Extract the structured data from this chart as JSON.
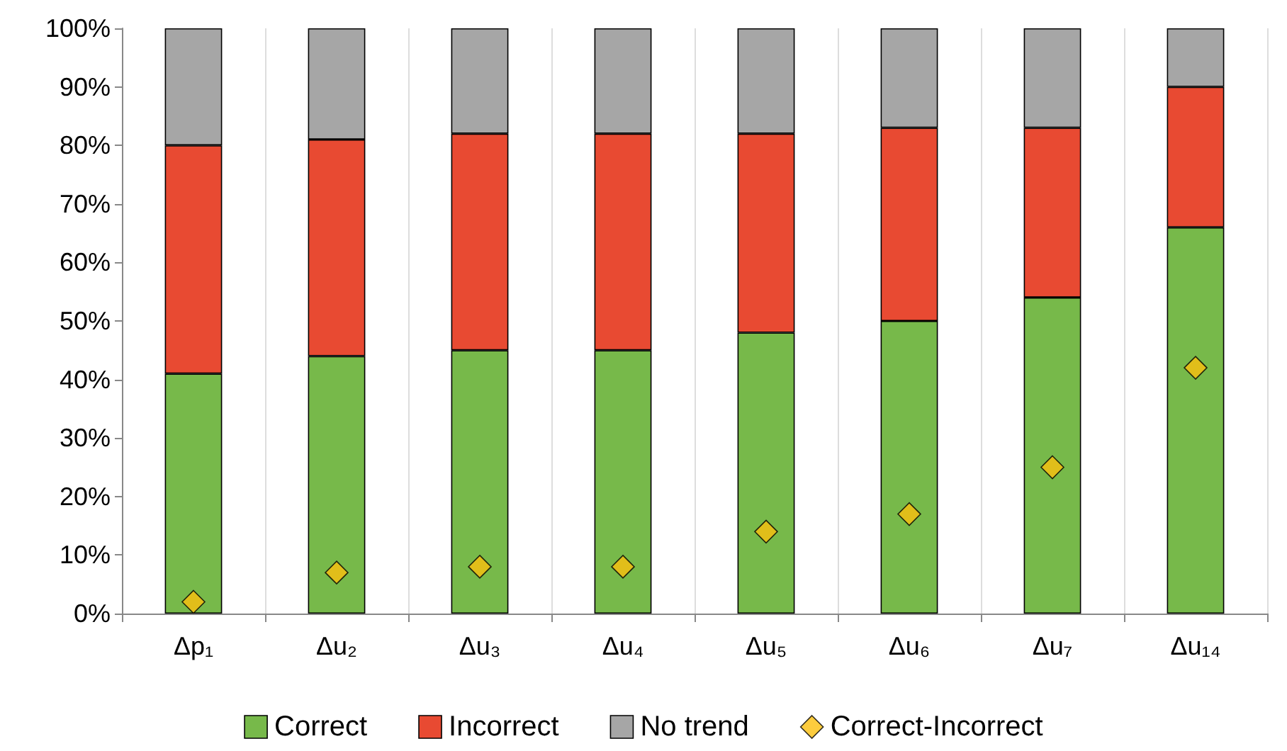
{
  "chart_data": {
    "type": "bar",
    "stacked": true,
    "categories": [
      "Δp₁",
      "Δu₂",
      "Δu₃",
      "Δu₄",
      "Δu₅",
      "Δu₆",
      "Δu₇",
      "Δu₁₄"
    ],
    "series": [
      {
        "name": "Correct",
        "color": "#77b94a",
        "values": [
          41,
          44,
          45,
          45,
          48,
          50,
          54,
          66
        ]
      },
      {
        "name": "Incorrect",
        "color": "#e84a32",
        "values": [
          39,
          37,
          37,
          37,
          34,
          33,
          29,
          24
        ]
      },
      {
        "name": "No trend",
        "color": "#a6a6a6",
        "values": [
          20,
          19,
          18,
          18,
          18,
          17,
          17,
          10
        ]
      },
      {
        "name": "Correct-Incorrect",
        "type": "scatter",
        "marker": "diamond",
        "color": "#fbbf0e",
        "values": [
          2,
          7,
          8,
          8,
          14,
          17,
          25,
          42
        ]
      }
    ],
    "ylim": [
      0,
      100
    ],
    "yticks": [
      {
        "value": 0,
        "label": "0%"
      },
      {
        "value": 10,
        "label": "10%"
      },
      {
        "value": 20,
        "label": "20%"
      },
      {
        "value": 30,
        "label": "30%"
      },
      {
        "value": 40,
        "label": "40%"
      },
      {
        "value": 50,
        "label": "50%"
      },
      {
        "value": 60,
        "label": "60%"
      },
      {
        "value": 70,
        "label": "70%"
      },
      {
        "value": 80,
        "label": "80%"
      },
      {
        "value": 90,
        "label": "90%"
      },
      {
        "value": 100,
        "label": "100%"
      }
    ],
    "grid": "x",
    "legend": "bottom"
  }
}
